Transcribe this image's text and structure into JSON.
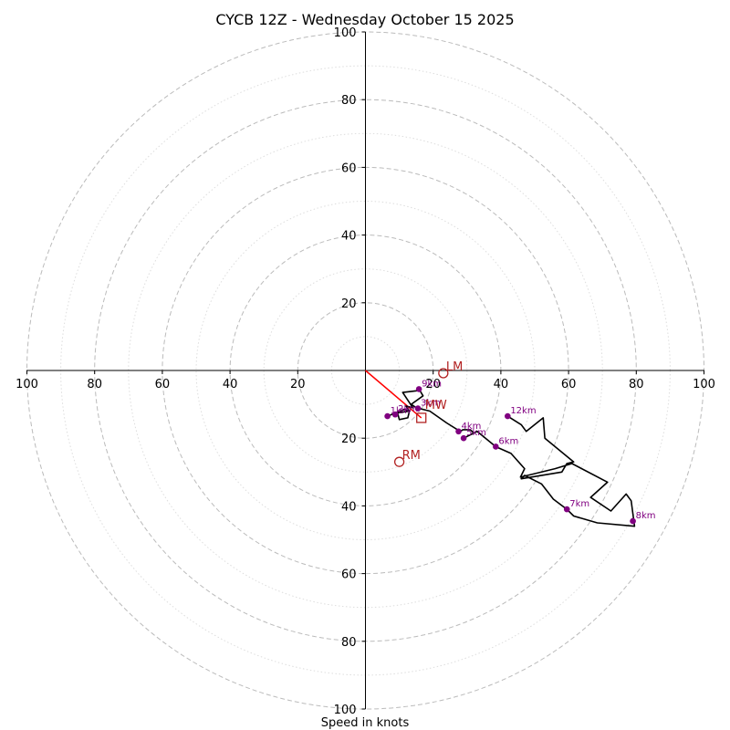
{
  "chart_data": {
    "type": "hodograph",
    "title": "CYCB 12Z - Wednesday October 15 2025",
    "xlabel": "Speed in knots",
    "axis_range": [
      -100,
      100
    ],
    "ring_labels": [
      "100",
      "80",
      "60",
      "40",
      "20",
      "20",
      "40",
      "60",
      "80",
      "100"
    ],
    "ring_values": [
      20,
      40,
      60,
      80,
      100
    ],
    "minor_ring_values": [
      10,
      30,
      50,
      70,
      90
    ],
    "colors": {
      "hodograph": "#000000",
      "markers": "#800080",
      "storm_motion": "#b22222",
      "shear_vector": "#ff0000",
      "rings": "#bbbbbb",
      "minor_rings": "#dddddd"
    },
    "hodograph_uv": [
      [
        6.5,
        -13.5
      ],
      [
        9,
        -12.5
      ],
      [
        11.5,
        -11.5
      ],
      [
        13,
        -12
      ],
      [
        12.5,
        -14
      ],
      [
        10,
        -14.5
      ],
      [
        9.5,
        -12.5
      ],
      [
        13,
        -12
      ],
      [
        12,
        -10.5
      ],
      [
        14,
        -11
      ],
      [
        11,
        -6.5
      ],
      [
        15,
        -6
      ],
      [
        16,
        -5.8
      ],
      [
        17,
        -7.5
      ],
      [
        13.5,
        -10
      ],
      [
        15,
        -11
      ],
      [
        19,
        -12
      ],
      [
        24,
        -15.5
      ],
      [
        28,
        -18
      ],
      [
        28.8,
        -17.5
      ],
      [
        31,
        -17.5
      ],
      [
        32,
        -18.5
      ],
      [
        29,
        -20
      ],
      [
        33,
        -18
      ],
      [
        38.5,
        -22.5
      ],
      [
        43,
        -24.5
      ],
      [
        47,
        -29
      ],
      [
        45.8,
        -31.5
      ],
      [
        56,
        -29
      ],
      [
        61,
        -27.5
      ],
      [
        71.5,
        -33
      ],
      [
        66.5,
        -37.5
      ],
      [
        72.5,
        -41.5
      ],
      [
        77,
        -36.5
      ],
      [
        78.5,
        -38.5
      ],
      [
        79.5,
        -46
      ],
      [
        68.5,
        -45
      ],
      [
        61.5,
        -43
      ],
      [
        59.5,
        -41
      ],
      [
        55.5,
        -38
      ],
      [
        52,
        -33.5
      ],
      [
        47,
        -31
      ],
      [
        46,
        -32
      ],
      [
        58,
        -30
      ],
      [
        59.5,
        -27.5
      ],
      [
        61.5,
        -27
      ],
      [
        53,
        -20
      ],
      [
        52.5,
        -14
      ],
      [
        47.5,
        -18
      ],
      [
        46,
        -16
      ],
      [
        42,
        -13.5
      ]
    ],
    "height_markers": [
      {
        "label": "1km",
        "u": 6.5,
        "v": -13.5
      },
      {
        "label": "2km",
        "u": 8.8,
        "v": -13
      },
      {
        "label": "3km",
        "u": 15.5,
        "v": -11.2
      },
      {
        "label": "4km",
        "u": 27.5,
        "v": -18
      },
      {
        "label": "5km",
        "u": 29,
        "v": -20
      },
      {
        "label": "6km",
        "u": 38.5,
        "v": -22.5
      },
      {
        "label": "7km",
        "u": 59.5,
        "v": -41
      },
      {
        "label": "8km",
        "u": 79,
        "v": -44.5
      },
      {
        "label": "9km",
        "u": 15.8,
        "v": -5.5
      },
      {
        "label": "12km",
        "u": 42,
        "v": -13.5
      }
    ],
    "storm_motion": [
      {
        "label": "LM",
        "u": 23,
        "v": -0.8,
        "marker": "circle"
      },
      {
        "label": "RM",
        "u": 10,
        "v": -27,
        "marker": "circle"
      },
      {
        "label": "MW",
        "u": 16.5,
        "v": -14,
        "marker": "square"
      }
    ],
    "shear_vector": {
      "from": [
        0,
        0
      ],
      "to": [
        16.5,
        -14
      ]
    },
    "grid": true
  }
}
